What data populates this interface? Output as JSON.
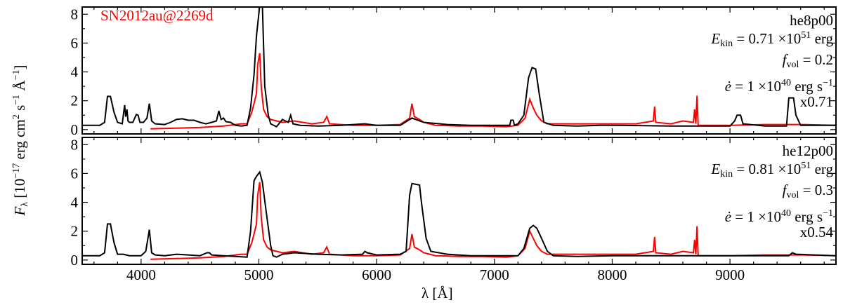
{
  "chart_data": {
    "type": "line",
    "xlabel": "λ [Å]",
    "ylabel": {
      "prefix": "F",
      "sub": "λ",
      "text": " [10",
      "exp1": "−17",
      "units": " erg cm",
      "exp2": "2",
      "s": " s",
      "exp3": "−1",
      "ang": " Å",
      "exp4": "−1",
      "close": "]"
    },
    "xlim": [
      3500,
      9900
    ],
    "ylim": [
      -0.3,
      8.5
    ],
    "xticks": [
      4000,
      5000,
      6000,
      7000,
      8000,
      9000
    ],
    "yticks": [
      0,
      2,
      4,
      6,
      8
    ],
    "grid": false,
    "colors": {
      "model": "#000000",
      "observed": "#ff0000"
    },
    "observed_label": "SN2012au@2269d",
    "panels": [
      {
        "model": "he8p00",
        "ekin": "0.71",
        "ekin_exp": "51",
        "fvol": "0.2",
        "edot": "1",
        "edot_exp": "40",
        "scale": "x0.71",
        "model_x": [
          3500,
          3650,
          3690,
          3715,
          3740,
          3770,
          3800,
          3840,
          3860,
          3869,
          3880,
          3889,
          3900,
          3930,
          3960,
          3975,
          3990,
          4020,
          4050,
          4070,
          4090,
          4120,
          4200,
          4250,
          4300,
          4350,
          4400,
          4450,
          4500,
          4550,
          4600,
          4640,
          4660,
          4680,
          4700,
          4720,
          4760,
          4800,
          4850,
          4900,
          4930,
          4959,
          4980,
          5007,
          5030,
          5050,
          5080,
          5100,
          5150,
          5200,
          5250,
          5270,
          5290,
          5350,
          5500,
          5700,
          5900,
          6000,
          6200,
          6300,
          6400,
          6600,
          6800,
          7000,
          7130,
          7140,
          7160,
          7170,
          7200,
          7250,
          7290,
          7320,
          7350,
          7380,
          7420,
          7500,
          7700,
          7900,
          8000,
          8500,
          8800,
          9000,
          9040,
          9060,
          9090,
          9110,
          9300,
          9480,
          9500,
          9540,
          9560,
          9600,
          9900
        ],
        "model_y": [
          0.3,
          0.3,
          0.5,
          2.3,
          2.3,
          1.2,
          0.5,
          0.4,
          1.7,
          0.9,
          1.4,
          0.6,
          0.5,
          0.5,
          1.05,
          1.0,
          0.5,
          0.5,
          0.8,
          1.8,
          0.6,
          0.4,
          0.35,
          0.5,
          0.7,
          0.75,
          0.65,
          0.65,
          0.5,
          0.4,
          0.5,
          0.6,
          1.3,
          0.7,
          0.8,
          0.55,
          0.5,
          0.3,
          0.25,
          0.3,
          1.5,
          3.8,
          6.5,
          8.6,
          8.6,
          3.0,
          1.0,
          0.4,
          0.2,
          0.7,
          0.5,
          1.0,
          0.4,
          0.3,
          0.25,
          0.3,
          0.4,
          0.3,
          0.3,
          0.8,
          0.5,
          0.35,
          0.3,
          0.3,
          0.3,
          0.65,
          0.65,
          0.3,
          0.4,
          1.0,
          3.6,
          4.3,
          4.2,
          2.5,
          0.5,
          0.3,
          0.25,
          0.3,
          0.3,
          0.25,
          0.25,
          0.25,
          0.6,
          1.0,
          1.0,
          0.4,
          0.25,
          0.25,
          2.2,
          2.2,
          1.0,
          0.3,
          0.3
        ],
        "obs_x": [
          4080,
          4300,
          4500,
          4700,
          4850,
          4900,
          4940,
          4959,
          4980,
          4990,
          5007,
          5020,
          5040,
          5070,
          5100,
          5200,
          5300,
          5450,
          5550,
          5577,
          5600,
          5800,
          6000,
          6200,
          6280,
          6300,
          6320,
          6364,
          6400,
          6500,
          6700,
          6900,
          7100,
          7200,
          7260,
          7300,
          7330,
          7360,
          7400,
          7450,
          7500,
          7700,
          8000,
          8200,
          8350,
          8360,
          8370,
          8500,
          8600,
          8690,
          8700,
          8710,
          8720,
          8730,
          8800,
          9000,
          9300,
          9600,
          9900
        ],
        "obs_y": [
          0.05,
          0.1,
          0.15,
          0.25,
          0.4,
          0.4,
          1.2,
          1.8,
          2.5,
          4.5,
          5.3,
          3.0,
          1.4,
          0.9,
          0.7,
          0.5,
          0.6,
          0.4,
          0.5,
          0.9,
          0.4,
          0.3,
          0.3,
          0.35,
          0.8,
          1.8,
          0.9,
          0.7,
          0.5,
          0.3,
          0.25,
          0.25,
          0.2,
          0.3,
          0.8,
          2.1,
          1.5,
          1.0,
          0.6,
          0.4,
          0.4,
          0.4,
          0.4,
          0.4,
          0.6,
          1.6,
          0.5,
          0.4,
          0.6,
          0.5,
          1.4,
          0.4,
          2.35,
          0.3,
          0.3,
          0.3,
          0.35,
          0.35,
          0.3
        ]
      },
      {
        "model": "he12p00",
        "ekin": "0.81",
        "ekin_exp": "51",
        "fvol": "0.3",
        "edot": "1",
        "edot_exp": "40",
        "scale": "x0.54",
        "model_x": [
          3500,
          3650,
          3690,
          3715,
          3740,
          3770,
          3800,
          3850,
          3900,
          4000,
          4040,
          4070,
          4090,
          4120,
          4200,
          4300,
          4400,
          4500,
          4560,
          4580,
          4600,
          4700,
          4800,
          4900,
          4930,
          4959,
          4980,
          5007,
          5030,
          5060,
          5100,
          5120,
          5150,
          5200,
          5300,
          5500,
          5700,
          5880,
          5900,
          5920,
          6000,
          6200,
          6250,
          6280,
          6300,
          6364,
          6380,
          6420,
          6460,
          6600,
          6800,
          7000,
          7200,
          7250,
          7300,
          7330,
          7360,
          7400,
          7450,
          7500,
          7700,
          8000,
          8500,
          9000,
          9500,
          9530,
          9560,
          9900
        ],
        "model_y": [
          0.3,
          0.3,
          0.5,
          2.5,
          2.5,
          1.2,
          0.4,
          0.4,
          0.3,
          0.3,
          0.6,
          2.1,
          0.5,
          0.35,
          0.3,
          0.4,
          0.35,
          0.3,
          0.5,
          0.5,
          0.35,
          0.3,
          0.25,
          0.2,
          2.0,
          5.5,
          5.8,
          6.1,
          5.4,
          3.5,
          1.0,
          0.3,
          0.2,
          0.4,
          0.5,
          0.4,
          0.35,
          0.4,
          0.6,
          0.5,
          0.35,
          0.4,
          0.6,
          4.5,
          5.3,
          5.2,
          4.0,
          1.5,
          0.6,
          0.4,
          0.3,
          0.3,
          0.3,
          0.8,
          2.2,
          2.4,
          2.2,
          1.5,
          0.6,
          0.3,
          0.25,
          0.3,
          0.3,
          0.3,
          0.3,
          0.5,
          0.4,
          0.3
        ],
        "obs_x": [
          4080,
          4300,
          4500,
          4700,
          4850,
          4900,
          4940,
          4959,
          4980,
          4990,
          5007,
          5020,
          5040,
          5070,
          5100,
          5200,
          5300,
          5450,
          5550,
          5577,
          5600,
          5800,
          6000,
          6200,
          6280,
          6300,
          6320,
          6364,
          6400,
          6500,
          6700,
          6900,
          7100,
          7200,
          7260,
          7300,
          7330,
          7360,
          7400,
          7450,
          7500,
          7700,
          8000,
          8200,
          8350,
          8360,
          8370,
          8500,
          8600,
          8690,
          8700,
          8710,
          8720,
          8730,
          8800,
          9000,
          9300,
          9600,
          9900
        ],
        "obs_y": [
          0.05,
          0.1,
          0.15,
          0.25,
          0.4,
          0.4,
          1.2,
          1.8,
          2.5,
          4.5,
          5.4,
          3.0,
          1.4,
          0.9,
          0.7,
          0.5,
          0.6,
          0.4,
          0.5,
          0.9,
          0.4,
          0.3,
          0.3,
          0.35,
          0.8,
          1.8,
          0.9,
          0.7,
          0.5,
          0.3,
          0.25,
          0.25,
          0.2,
          0.3,
          0.8,
          2.0,
          1.5,
          1.0,
          0.6,
          0.4,
          0.4,
          0.4,
          0.4,
          0.4,
          0.6,
          1.6,
          0.5,
          0.4,
          0.6,
          0.5,
          1.4,
          0.4,
          2.35,
          0.3,
          0.3,
          0.3,
          0.35,
          0.35,
          0.3
        ]
      }
    ]
  }
}
